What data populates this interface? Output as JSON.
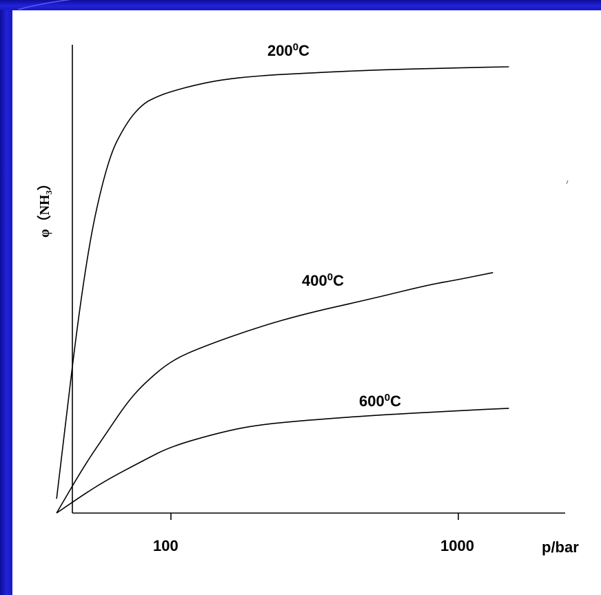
{
  "slide": {
    "background": "#ffffff",
    "frame_color": "#1a1ac8"
  },
  "chart_data": {
    "type": "line",
    "xscale": "log",
    "xlim": [
      40,
      1500
    ],
    "ylim": [
      0,
      1
    ],
    "xlabel": "p/bar",
    "ylabel": "φ（NH₃）",
    "xticks": [
      100,
      1000
    ],
    "xtick_labels": [
      "100",
      "1000"
    ],
    "grid": false,
    "series": [
      {
        "name": "200⁰C",
        "label_base": "200",
        "label_sup": "0",
        "label_tail": "C",
        "points": [
          [
            40,
            0.03
          ],
          [
            50,
            0.52
          ],
          [
            60,
            0.74
          ],
          [
            70,
            0.82
          ],
          [
            80,
            0.86
          ],
          [
            90,
            0.875
          ],
          [
            100,
            0.885
          ],
          [
            120,
            0.898
          ],
          [
            150,
            0.91
          ],
          [
            200,
            0.918
          ],
          [
            300,
            0.924
          ],
          [
            500,
            0.93
          ],
          [
            1000,
            0.935
          ],
          [
            1500,
            0.937
          ]
        ]
      },
      {
        "name": "400⁰C",
        "label_base": "400",
        "label_sup": "0",
        "label_tail": "C",
        "points": [
          [
            40,
            0.0
          ],
          [
            50,
            0.1
          ],
          [
            60,
            0.17
          ],
          [
            70,
            0.23
          ],
          [
            80,
            0.27
          ],
          [
            100,
            0.32
          ],
          [
            130,
            0.35
          ],
          [
            200,
            0.39
          ],
          [
            300,
            0.42
          ],
          [
            500,
            0.45
          ],
          [
            800,
            0.48
          ],
          [
            1000,
            0.49
          ],
          [
            1320,
            0.505
          ]
        ]
      },
      {
        "name": "600⁰C",
        "label_base": "600",
        "label_sup": "0",
        "label_tail": "C",
        "points": [
          [
            40,
            0.0
          ],
          [
            50,
            0.04
          ],
          [
            60,
            0.07
          ],
          [
            80,
            0.11
          ],
          [
            100,
            0.14
          ],
          [
            150,
            0.17
          ],
          [
            200,
            0.185
          ],
          [
            300,
            0.195
          ],
          [
            500,
            0.205
          ],
          [
            1000,
            0.215
          ],
          [
            1500,
            0.22
          ]
        ]
      }
    ]
  }
}
